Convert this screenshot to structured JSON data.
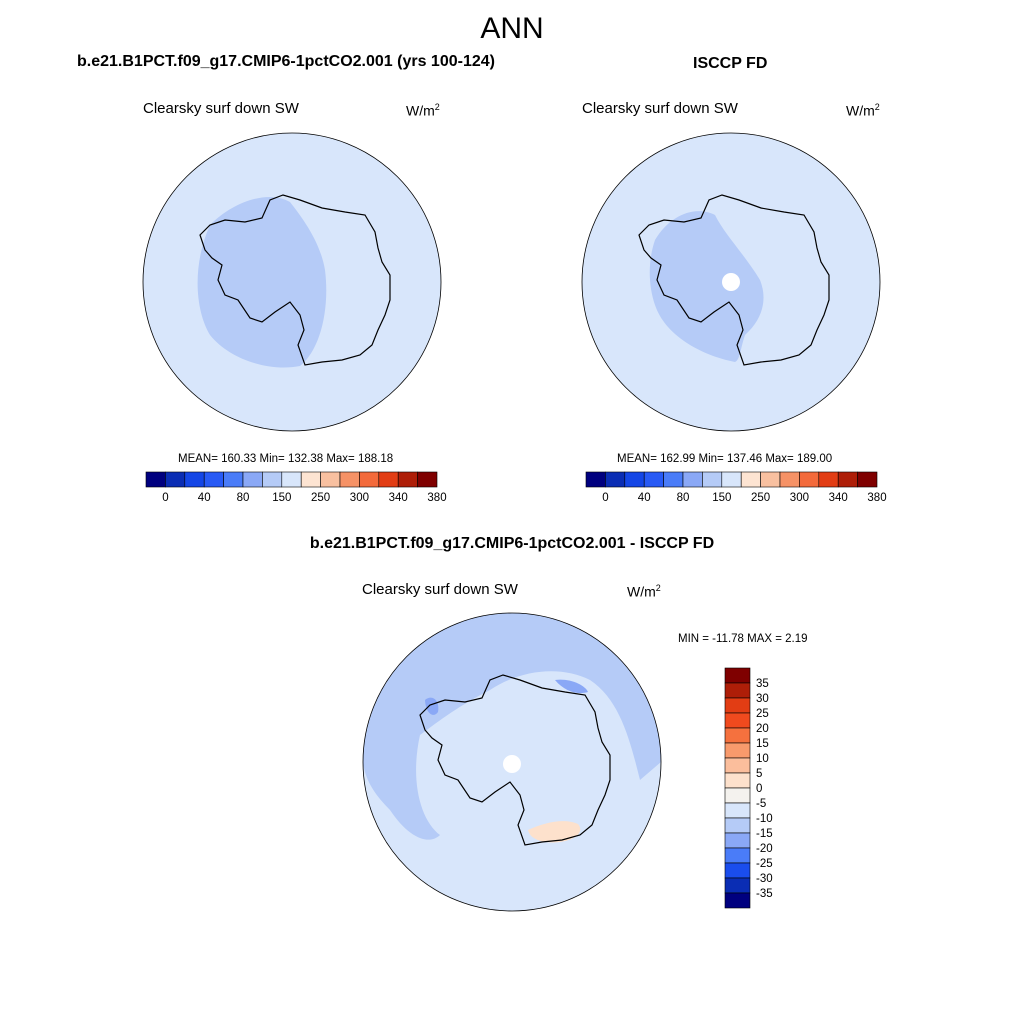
{
  "title": "ANN",
  "palette": {
    "full": [
      "#00007f",
      "#0a2db4",
      "#1446e6",
      "#285af5",
      "#4a7cf8",
      "#8aa8f6",
      "#b5cbf7",
      "#d8e6fb",
      "#fde4d2",
      "#f8c0a0",
      "#f69266",
      "#f36a3b",
      "#e23d14",
      "#ae1e08",
      "#7f0000"
    ],
    "diff": [
      "#7f0000",
      "#ae1e08",
      "#e23d14",
      "#f04a1e",
      "#f5713e",
      "#f89a6c",
      "#fbbe9c",
      "#fde1cc",
      "#f4f2ee",
      "#d8e6fb",
      "#b5cbf7",
      "#8aa8f6",
      "#4a7cf8",
      "#1a4ded",
      "#0a2db4",
      "#00007f"
    ],
    "ocean": "#d8e6fb",
    "model_shade": "#b5cbf7",
    "warm_patch": "#fde1cc"
  },
  "panels": {
    "model": {
      "title": "b.e21.B1PCT.f09_g17.CMIP6-1pctCO2.001 (yrs 100-124)",
      "variable": "Clearsky surf down SW",
      "units_base": "W/m",
      "units_exp": "2",
      "stats": "MEAN= 160.33  Min= 132.38  Max= 188.18"
    },
    "obs": {
      "title": "ISCCP FD",
      "variable": "Clearsky surf down SW",
      "units_base": "W/m",
      "units_exp": "2",
      "stats": "MEAN= 162.99  Min= 137.46  Max= 189.00"
    },
    "diff": {
      "title": "b.e21.B1PCT.f09_g17.CMIP6-1pctCO2.001 - ISCCP FD",
      "variable": "Clearsky surf down SW",
      "units_base": "W/m",
      "units_exp": "2",
      "minmax": "MIN = -11.78 MAX =   2.19"
    }
  },
  "chart_data": [
    {
      "type": "heatmap",
      "projection": "south-polar-stereographic",
      "title": "b.e21.B1PCT.f09_g17.CMIP6-1pctCO2.001 (yrs 100-124)",
      "variable": "Clearsky surf down SW",
      "units": "W/m^2",
      "mean": 160.33,
      "min": 132.38,
      "max": 188.18,
      "colorbar_ticks": [
        "0",
        "40",
        "80",
        "150",
        "250",
        "300",
        "340",
        "380"
      ]
    },
    {
      "type": "heatmap",
      "projection": "south-polar-stereographic",
      "title": "ISCCP FD",
      "variable": "Clearsky surf down SW",
      "units": "W/m^2",
      "mean": 162.99,
      "min": 137.46,
      "max": 189.0,
      "colorbar_ticks": [
        "0",
        "40",
        "80",
        "150",
        "250",
        "300",
        "340",
        "380"
      ]
    },
    {
      "type": "heatmap",
      "projection": "south-polar-stereographic",
      "title": "b.e21.B1PCT.f09_g17.CMIP6-1pctCO2.001 - ISCCP FD",
      "variable": "Clearsky surf down SW",
      "units": "W/m^2",
      "min": -11.78,
      "max": 2.19,
      "colorbar_ticks": [
        "35",
        "30",
        "25",
        "20",
        "15",
        "10",
        "5",
        "0",
        "-5",
        "-10",
        "-15",
        "-20",
        "-25",
        "-30",
        "-35"
      ]
    }
  ]
}
